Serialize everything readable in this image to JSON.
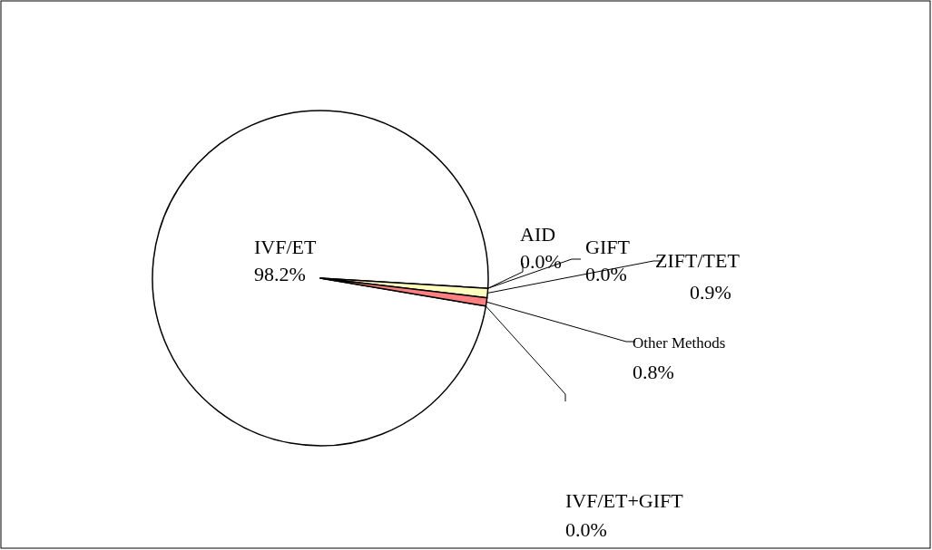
{
  "chart_data": {
    "type": "pie",
    "categories": [
      "IVF/ET",
      "AID",
      "GIFT",
      "ZIFT/TET",
      "Other Methods",
      "IVF/ET+GIFT"
    ],
    "values": [
      98.2,
      0.0,
      0.0,
      0.9,
      0.8,
      0.0
    ],
    "colors": [
      "#ffffff",
      "#9999ff",
      "#993366",
      "#ffffc0",
      "#ff8080",
      "#ccffff"
    ],
    "value_labels": [
      "98.2%",
      "0.0%",
      "0.0%",
      "0.9%",
      "0.8%",
      "0.0%"
    ]
  }
}
